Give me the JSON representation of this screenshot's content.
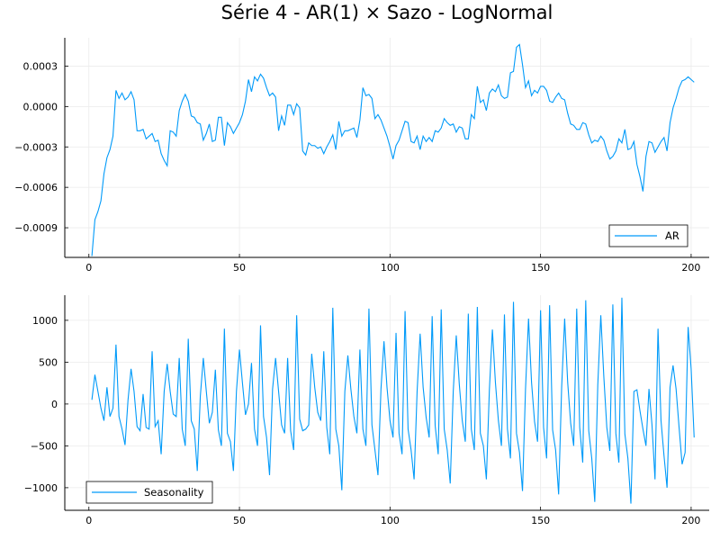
{
  "title": "Série 4 - AR(1) × Sazo - LogNormal",
  "colors": {
    "series": "#009AF9",
    "grid": "#EBEBEB",
    "axis": "#000000"
  },
  "chart_data": [
    {
      "type": "line",
      "legend_position": "bottom-right",
      "grid": true,
      "xlim": [
        -8,
        206
      ],
      "ylim": [
        -0.00112,
        0.00051
      ],
      "xticks": [
        0,
        50,
        100,
        150,
        200
      ],
      "xtick_labels": [
        "0",
        "50",
        "100",
        "150",
        "200"
      ],
      "yticks": [
        -0.0009,
        -0.0006,
        -0.0003,
        0.0,
        0.0003
      ],
      "ytick_labels": [
        "−0.0009",
        "−0.0006",
        "−0.0003",
        "0.0000",
        "0.0003"
      ],
      "series": [
        {
          "name": "AR",
          "x_start": 1,
          "values": [
            -0.00111,
            -0.00084,
            -0.00078,
            -0.0007,
            -0.0005,
            -0.00038,
            -0.00032,
            -0.00022,
            0.00012,
            6e-05,
            0.0001,
            5e-05,
            7e-05,
            0.00011,
            5e-05,
            -0.00018,
            -0.00018,
            -0.00017,
            -0.00024,
            -0.00022,
            -0.0002,
            -0.00026,
            -0.00025,
            -0.00035,
            -0.0004,
            -0.00044,
            -0.00018,
            -0.00019,
            -0.00022,
            -3e-05,
            4e-05,
            9e-05,
            4e-05,
            -7e-05,
            -8e-05,
            -0.00012,
            -0.00013,
            -0.00025,
            -0.0002,
            -0.00013,
            -0.00026,
            -0.00025,
            -8e-05,
            -8e-05,
            -0.00029,
            -0.00012,
            -0.00015,
            -0.0002,
            -0.00016,
            -0.00012,
            -6e-05,
            4e-05,
            0.0002,
            0.00011,
            0.00022,
            0.00019,
            0.00024,
            0.00021,
            0.00014,
            8e-05,
            0.0001,
            7e-05,
            -0.00018,
            -7e-05,
            -0.00014,
            1e-05,
            1e-05,
            -6e-05,
            2e-05,
            -1e-05,
            -0.00033,
            -0.00036,
            -0.00027,
            -0.00029,
            -0.00029,
            -0.00031,
            -0.0003,
            -0.00035,
            -0.0003,
            -0.00026,
            -0.00021,
            -0.00032,
            -0.00011,
            -0.00022,
            -0.00018,
            -0.00018,
            -0.00017,
            -0.00016,
            -0.00023,
            -0.0001,
            0.00014,
            8e-05,
            9e-05,
            6e-05,
            -9e-05,
            -6e-05,
            -0.0001,
            -0.00016,
            -0.00022,
            -0.0003,
            -0.00039,
            -0.00029,
            -0.00025,
            -0.00018,
            -0.00011,
            -0.00012,
            -0.00026,
            -0.00027,
            -0.00022,
            -0.00032,
            -0.00022,
            -0.00026,
            -0.00023,
            -0.00026,
            -0.00018,
            -0.00019,
            -0.00016,
            -9e-05,
            -0.00012,
            -0.00014,
            -0.00013,
            -0.00019,
            -0.00015,
            -0.00016,
            -0.00024,
            -0.00024,
            -6e-05,
            -9e-05,
            0.00015,
            3e-05,
            5e-05,
            -3e-05,
            0.0001,
            0.00013,
            0.00011,
            0.00016,
            8e-05,
            6e-05,
            7e-05,
            0.00025,
            0.00026,
            0.00044,
            0.00046,
            0.00031,
            0.00014,
            0.00019,
            8e-05,
            0.00012,
            0.0001,
            0.00015,
            0.00015,
            0.00012,
            4e-05,
            3e-05,
            7e-05,
            0.0001,
            6e-05,
            5e-05,
            -5e-05,
            -0.00013,
            -0.00014,
            -0.00017,
            -0.00017,
            -0.00012,
            -0.00013,
            -0.00021,
            -0.00027,
            -0.00025,
            -0.00026,
            -0.00022,
            -0.00025,
            -0.00033,
            -0.00039,
            -0.00037,
            -0.00033,
            -0.00024,
            -0.00027,
            -0.00017,
            -0.00032,
            -0.00031,
            -0.00026,
            -0.00043,
            -0.00052,
            -0.00063,
            -0.00037,
            -0.00026,
            -0.00027,
            -0.00034,
            -0.0003,
            -0.00026,
            -0.00023,
            -0.00033,
            -0.00012,
            -1e-05,
            6e-05,
            0.00014,
            0.00019,
            0.0002,
            0.00022,
            0.0002,
            0.00018
          ]
        }
      ]
    },
    {
      "type": "line",
      "legend_position": "bottom-left",
      "grid": true,
      "xlim": [
        -8,
        206
      ],
      "ylim": [
        -1270,
        1300
      ],
      "xticks": [
        0,
        50,
        100,
        150,
        200
      ],
      "xtick_labels": [
        "0",
        "50",
        "100",
        "150",
        "200"
      ],
      "yticks": [
        -1000,
        -500,
        0,
        500,
        1000
      ],
      "ytick_labels": [
        "−1000",
        "−500",
        "0",
        "500",
        "1000"
      ],
      "series": [
        {
          "name": "Seasonality",
          "x_start": 1,
          "values": [
            50,
            350,
            150,
            -50,
            -200,
            200,
            -150,
            -50,
            710,
            -150,
            -300,
            -490,
            50,
            420,
            150,
            -270,
            -320,
            120,
            -280,
            -300,
            630,
            -270,
            -200,
            -600,
            150,
            480,
            150,
            -120,
            -150,
            550,
            -300,
            -500,
            780,
            -200,
            -300,
            -800,
            90,
            550,
            150,
            -230,
            -100,
            410,
            -310,
            -500,
            900,
            -350,
            -450,
            -800,
            150,
            650,
            250,
            -130,
            0,
            490,
            -300,
            -500,
            940,
            -150,
            -400,
            -850,
            180,
            550,
            150,
            -250,
            -350,
            550,
            -320,
            -550,
            1060,
            -180,
            -320,
            -300,
            -250,
            600,
            200,
            -100,
            -200,
            630,
            -280,
            -600,
            1150,
            -300,
            -500,
            -1030,
            150,
            580,
            180,
            -150,
            -350,
            650,
            -300,
            -500,
            1140,
            -250,
            -550,
            -850,
            180,
            750,
            200,
            -200,
            -400,
            850,
            -350,
            -600,
            1110,
            -300,
            -550,
            -900,
            150,
            840,
            200,
            -160,
            -400,
            1050,
            -260,
            -600,
            1130,
            -300,
            -550,
            -950,
            150,
            820,
            240,
            -200,
            -450,
            1080,
            -300,
            -550,
            1160,
            -350,
            -500,
            -900,
            170,
            890,
            260,
            -200,
            -500,
            1070,
            -300,
            -650,
            1220,
            -350,
            -580,
            -1040,
            180,
            1020,
            260,
            -210,
            -450,
            1120,
            -280,
            -650,
            1180,
            -310,
            -550,
            -1080,
            200,
            1020,
            260,
            -230,
            -500,
            1140,
            -280,
            -700,
            1240,
            -320,
            -650,
            -1170,
            230,
            1060,
            330,
            -280,
            -560,
            1190,
            -350,
            -700,
            1270,
            -360,
            -650,
            -1190,
            150,
            170,
            -80,
            -300,
            -500,
            180,
            -250,
            -900,
            900,
            -200,
            -620,
            -1000,
            200,
            460,
            180,
            -280,
            -720,
            -580,
            920,
            420,
            -400
          ]
        }
      ]
    }
  ]
}
